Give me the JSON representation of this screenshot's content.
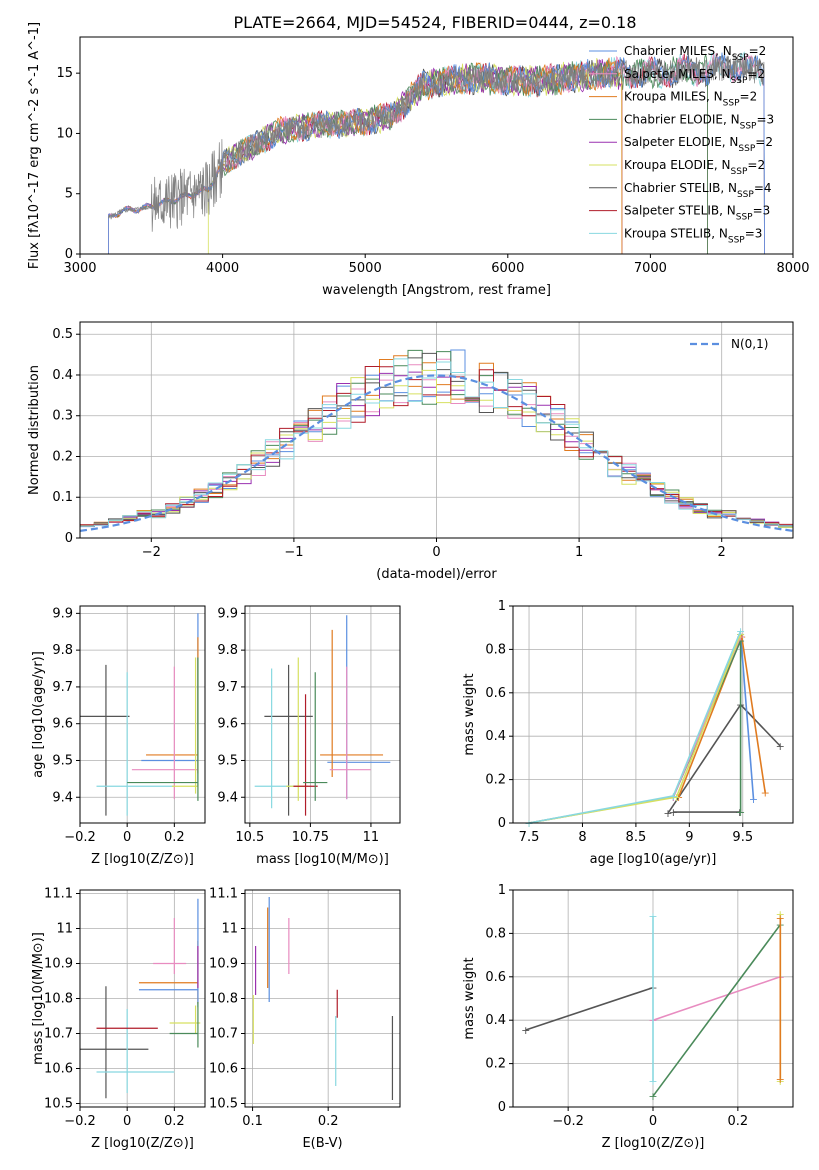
{
  "title": "PLATE=2664, MJD=54524, FIBERID=0444, z=0.18",
  "colors": {
    "Chabrier MILES": "#5b8fe0",
    "Salpeter MILES": "#e88cc0",
    "Kroupa MILES": "#e07b20",
    "Chabrier ELODIE": "#4a8a5a",
    "Salpeter ELODIE": "#9a30b0",
    "Kroupa ELODIE": "#d6e060",
    "Chabrier STELIB": "#555555",
    "Salpeter STELIB": "#b01c2a",
    "Kroupa STELIB": "#88d8e0",
    "data": "#808080",
    "normal": "#5b8fe0",
    "grid": "#b0b0b0"
  },
  "legend_models": [
    "Chabrier MILES, N_SSP=2",
    "Salpeter MILES, N_SSP=2",
    "Kroupa MILES, N_SSP=2",
    "Chabrier ELODIE, N_SSP=3",
    "Salpeter ELODIE, N_SSP=2",
    "Kroupa ELODIE, N_SSP=2",
    "Chabrier STELIB, N_SSP=4",
    "Salpeter STELIB, N_SSP=3",
    "Kroupa STELIB, N_SSP=3"
  ],
  "chart_data": [
    {
      "type": "line",
      "xlabel": "wavelength [Angstrom, rest frame]",
      "ylabel": "Flux [fλ10^-17 erg cm^-2 s^-1 A^-1]",
      "xlim": [
        3000,
        8000
      ],
      "ylim": [
        0,
        18
      ],
      "xticks": [
        3000,
        4000,
        5000,
        6000,
        7000,
        8000
      ],
      "yticks": [
        0,
        5,
        10,
        15
      ],
      "spectrum_x": [
        3200,
        3300,
        3450,
        3600,
        3750,
        3900,
        4000,
        4100,
        4250,
        4400,
        4600,
        4800,
        5000,
        5200,
        5400,
        5600,
        5800,
        6000,
        6200,
        6400,
        6600,
        6800,
        7000,
        7200,
        7400,
        7600,
        7800
      ],
      "spectrum_y": [
        3.0,
        3.6,
        3.8,
        4.3,
        4.8,
        5.4,
        7.5,
        8.2,
        9.2,
        10.2,
        10.6,
        10.8,
        11.0,
        11.5,
        14.0,
        14.4,
        14.6,
        14.4,
        14.3,
        14.6,
        14.9,
        15.0,
        15.0,
        15.2,
        15.2,
        15.6,
        15.0
      ],
      "grid": false,
      "legend_position": "upper right"
    },
    {
      "type": "histogram",
      "xlabel": "(data-model)/error",
      "ylabel": "Normed distribution",
      "xlim": [
        -2.5,
        2.5
      ],
      "ylim": [
        0,
        0.53
      ],
      "xticks": [
        -2,
        -1,
        0,
        1,
        2
      ],
      "yticks": [
        0.0,
        0.1,
        0.2,
        0.3,
        0.4,
        0.5
      ],
      "normal_label": "N(0,1)",
      "grid": true,
      "legend_position": "upper right"
    },
    {
      "type": "errorbar",
      "xlabel": "Z [log10(Z/Z⊙)]",
      "ylabel": "age  [log10(age/yr)]",
      "xlim": [
        -0.2,
        0.33
      ],
      "ylim": [
        9.33,
        9.92
      ],
      "xticks": [
        -0.2,
        0.0,
        0.2
      ],
      "yticks": [
        9.4,
        9.5,
        9.6,
        9.7,
        9.8,
        9.9
      ],
      "grid": true
    },
    {
      "type": "errorbar",
      "xlabel": "mass [log10(M/M⊙)]",
      "xlim": [
        10.48,
        11.12
      ],
      "ylim": [
        9.33,
        9.92
      ],
      "xticks": [
        10.5,
        10.75,
        11.0
      ],
      "yticks": [
        9.4,
        9.5,
        9.6,
        9.7,
        9.8,
        9.9
      ],
      "grid": true
    },
    {
      "type": "line",
      "xlabel": "age  [log10(age/yr)]",
      "ylabel": "mass weight",
      "xlim": [
        7.35,
        9.97
      ],
      "ylim": [
        0,
        1.0
      ],
      "xticks": [
        7.5,
        8.0,
        8.5,
        9.0,
        9.5
      ],
      "yticks": [
        0.0,
        0.2,
        0.4,
        0.6,
        0.8,
        1.0
      ],
      "grid": true
    },
    {
      "type": "errorbar",
      "xlabel": "Z [log10(Z/Z⊙)]",
      "ylabel": "mass [log10(M/M⊙)]",
      "xlim": [
        -0.2,
        0.33
      ],
      "ylim": [
        10.49,
        11.11
      ],
      "xticks": [
        -0.2,
        0.0,
        0.2
      ],
      "yticks": [
        10.5,
        10.6,
        10.7,
        10.8,
        10.9,
        11.0,
        11.1
      ],
      "grid": true
    },
    {
      "type": "errorbar",
      "xlabel": "E(B-V)",
      "xlim": [
        0.09,
        0.295
      ],
      "ylim": [
        10.49,
        11.11
      ],
      "xticks": [
        0.1,
        0.2
      ],
      "yticks": [
        10.5,
        10.6,
        10.7,
        10.8,
        10.9,
        11.0,
        11.1
      ],
      "grid": true
    },
    {
      "type": "line",
      "xlabel": "Z [log10(Z/Z⊙)]",
      "ylabel": "mass weight",
      "xlim": [
        -0.33,
        0.33
      ],
      "ylim": [
        0,
        1.0
      ],
      "xticks": [
        -0.2,
        0.0,
        0.2
      ],
      "yticks": [
        0.0,
        0.2,
        0.4,
        0.6,
        0.8,
        1.0
      ],
      "grid": true
    }
  ]
}
